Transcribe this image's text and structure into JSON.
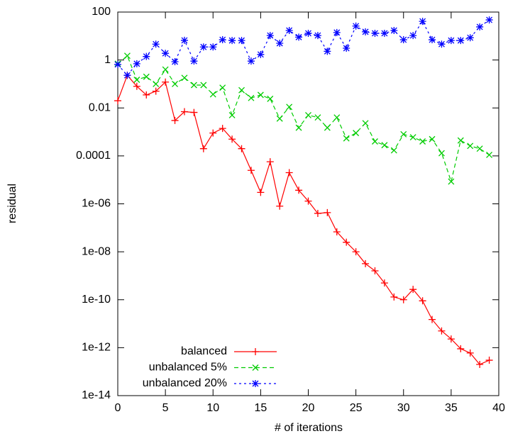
{
  "chart_data": {
    "type": "line",
    "x_label": "# of iterations",
    "y_label": "residual",
    "y_log": true,
    "x": [
      0,
      1,
      2,
      3,
      4,
      5,
      6,
      7,
      8,
      9,
      10,
      11,
      12,
      13,
      14,
      15,
      16,
      17,
      18,
      19,
      20,
      21,
      22,
      23,
      24,
      25,
      26,
      27,
      28,
      29,
      30,
      31,
      32,
      33,
      34,
      35,
      36,
      37,
      38,
      39
    ],
    "xlim": [
      0,
      40
    ],
    "xticks": [
      0,
      5,
      10,
      15,
      20,
      25,
      30,
      35,
      40
    ],
    "ylim": [
      1e-14,
      100
    ],
    "yticks": [
      {
        "value": 1e-14,
        "label": "1e-14"
      },
      {
        "value": 1e-12,
        "label": "1e-12"
      },
      {
        "value": 1e-10,
        "label": "1e-10"
      },
      {
        "value": 1e-08,
        "label": "1e-08"
      },
      {
        "value": 1e-06,
        "label": "1e-06"
      },
      0.0001,
      0.01,
      1,
      100
    ],
    "legend_position": "bottom-left",
    "series": [
      {
        "name": "balanced",
        "color": "#ff0000",
        "marker": "plus",
        "dash": "solid",
        "values": [
          0.02,
          0.23,
          0.08,
          0.035,
          0.05,
          0.12,
          0.003,
          0.007,
          0.0065,
          0.0002,
          0.0009,
          0.0014,
          0.0005,
          0.0002,
          2.5e-05,
          3e-06,
          5.7e-05,
          8e-07,
          2e-05,
          3.7e-06,
          1.3e-06,
          4e-07,
          4.3e-07,
          6.8e-08,
          2.5e-08,
          1e-08,
          3.2e-09,
          1.6e-09,
          5e-10,
          1.3e-10,
          1e-10,
          2.7e-10,
          9e-11,
          1.5e-11,
          5e-12,
          2.3e-12,
          9e-13,
          6e-13,
          2e-13,
          3e-13
        ]
      },
      {
        "name": "unbalanced 5%",
        "color": "#00cc00",
        "marker": "cross",
        "dash": "dashed",
        "values": [
          0.7,
          1.5,
          0.15,
          0.2,
          0.1,
          0.4,
          0.1,
          0.18,
          0.09,
          0.09,
          0.037,
          0.07,
          0.005,
          0.055,
          0.026,
          0.035,
          0.024,
          0.0036,
          0.011,
          0.0015,
          0.005,
          0.004,
          0.0015,
          0.004,
          0.00054,
          0.0009,
          0.0023,
          0.0004,
          0.00028,
          0.00017,
          0.0008,
          0.0006,
          0.0004,
          0.0005,
          0.00013,
          8.5e-06,
          0.00044,
          0.00026,
          0.0002,
          0.00011
        ]
      },
      {
        "name": "unbalanced 20%",
        "color": "#0000ff",
        "marker": "star",
        "dash": "dotted",
        "values": [
          0.65,
          0.23,
          0.7,
          1.4,
          4.6,
          1.9,
          0.85,
          6.6,
          0.9,
          3.5,
          3.5,
          7,
          6.5,
          6.5,
          0.9,
          1.7,
          10.5,
          5,
          17,
          9,
          13,
          10.5,
          2.3,
          14,
          3.1,
          26,
          15,
          13,
          13,
          17,
          7,
          10.5,
          41,
          7,
          4.6,
          6.5,
          6.5,
          8.5,
          24,
          47
        ]
      }
    ]
  }
}
